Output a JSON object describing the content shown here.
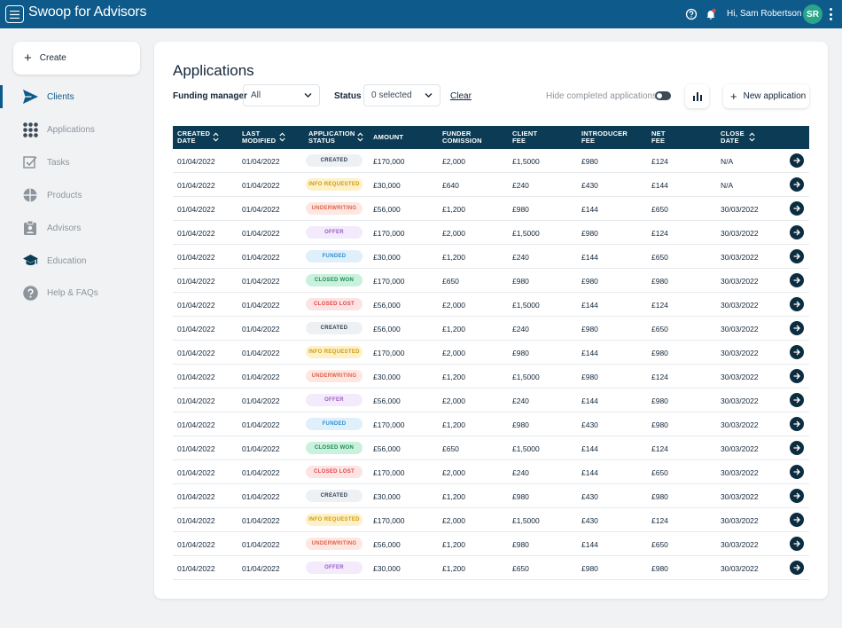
{
  "topbar": {
    "app_title": "Swoop for Advisors",
    "greeting": "Hi, Sam Robertson",
    "avatar_initials": "SR",
    "icons": [
      "menu-icon",
      "help-icon",
      "bell-icon",
      "kebab-icon"
    ],
    "notification_dot_color": "#e5484d"
  },
  "sidebar": {
    "create_label": "Create",
    "items": [
      {
        "label": "Clients",
        "icon": "paper-plane-icon",
        "active": true
      },
      {
        "label": "Applications",
        "icon": "grid-icon",
        "active": false
      },
      {
        "label": "Tasks",
        "icon": "checkbox-icon",
        "active": false
      },
      {
        "label": "Products",
        "icon": "pie-icon",
        "active": false
      },
      {
        "label": "Advisors",
        "icon": "badge-icon",
        "active": false
      },
      {
        "label": "Education",
        "icon": "graduation-cap-icon",
        "active": false
      },
      {
        "label": "Help & FAQs",
        "icon": "question-icon",
        "active": false
      }
    ]
  },
  "main": {
    "title": "Applications",
    "filters": {
      "funding_manager_label": "Funding manager",
      "funding_manager_value": "All",
      "status_label": "Status",
      "status_value": "0 selected",
      "clear_label": "Clear",
      "hide_completed_label": "Hide completed applications",
      "hide_completed_on": false
    },
    "new_application_label": "New application",
    "table": {
      "columns": [
        {
          "line1": "CREATED",
          "line2": "DATE",
          "sortable": true
        },
        {
          "line1": "LAST",
          "line2": "MODIFIED",
          "sortable": true
        },
        {
          "line1": "APPLICATION",
          "line2": "STATUS",
          "sortable": true
        },
        {
          "line1": "AMOUNT",
          "line2": "",
          "sortable": false
        },
        {
          "line1": "FUNDER",
          "line2": "COMISSION",
          "sortable": false
        },
        {
          "line1": "CLIENT",
          "line2": "FEE",
          "sortable": false
        },
        {
          "line1": "INTRODUCER",
          "line2": "FEE",
          "sortable": false
        },
        {
          "line1": "NET",
          "line2": "FEE",
          "sortable": false
        },
        {
          "line1": "CLOSE",
          "line2": "DATE",
          "sortable": true
        }
      ],
      "status_styles": {
        "CREATED": {
          "bg": "#eef1f4",
          "fg": "#2c3e50"
        },
        "INFO REQUESTED": {
          "bg": "#fdf1c9",
          "fg": "#d49a0b"
        },
        "UNDERWRITING": {
          "bg": "#fde7e2",
          "fg": "#e0614a"
        },
        "OFFER": {
          "bg": "#f3eafb",
          "fg": "#9a5bc9"
        },
        "FUNDED": {
          "bg": "#dff0fb",
          "fg": "#2e8fcf"
        },
        "CLOSED WON": {
          "bg": "#c9f1dd",
          "fg": "#1f8a56"
        },
        "CLOSED LOST": {
          "bg": "#fde4e4",
          "fg": "#e0454a"
        }
      },
      "rows": [
        {
          "created": "01/04/2022",
          "modified": "01/04/2022",
          "status": "CREATED",
          "amount": "£170,000",
          "funder": "£2,000",
          "client": "£1,5000",
          "introducer": "£980",
          "net": "£124",
          "close": "N/A"
        },
        {
          "created": "01/04/2022",
          "modified": "01/04/2022",
          "status": "INFO REQUESTED",
          "amount": "£30,000",
          "funder": "£640",
          "client": "£240",
          "introducer": "£430",
          "net": "£144",
          "close": "N/A"
        },
        {
          "created": "01/04/2022",
          "modified": "01/04/2022",
          "status": "UNDERWRITING",
          "amount": "£56,000",
          "funder": "£1,200",
          "client": "£980",
          "introducer": "£144",
          "net": "£650",
          "close": "30/03/2022"
        },
        {
          "created": "01/04/2022",
          "modified": "01/04/2022",
          "status": "OFFER",
          "amount": "£170,000",
          "funder": "£2,000",
          "client": "£1,5000",
          "introducer": "£980",
          "net": "£124",
          "close": "30/03/2022"
        },
        {
          "created": "01/04/2022",
          "modified": "01/04/2022",
          "status": "FUNDED",
          "amount": "£30,000",
          "funder": "£1,200",
          "client": "£240",
          "introducer": "£144",
          "net": "£650",
          "close": "30/03/2022"
        },
        {
          "created": "01/04/2022",
          "modified": "01/04/2022",
          "status": "CLOSED WON",
          "amount": "£170,000",
          "funder": "£650",
          "client": "£980",
          "introducer": "£980",
          "net": "£980",
          "close": "30/03/2022"
        },
        {
          "created": "01/04/2022",
          "modified": "01/04/2022",
          "status": "CLOSED LOST",
          "amount": "£56,000",
          "funder": "£2,000",
          "client": "£1,5000",
          "introducer": "£144",
          "net": "£124",
          "close": "30/03/2022"
        },
        {
          "created": "01/04/2022",
          "modified": "01/04/2022",
          "status": "CREATED",
          "amount": "£56,000",
          "funder": "£1,200",
          "client": "£240",
          "introducer": "£980",
          "net": "£650",
          "close": "30/03/2022"
        },
        {
          "created": "01/04/2022",
          "modified": "01/04/2022",
          "status": "INFO REQUESTED",
          "amount": "£170,000",
          "funder": "£2,000",
          "client": "£980",
          "introducer": "£144",
          "net": "£980",
          "close": "30/03/2022"
        },
        {
          "created": "01/04/2022",
          "modified": "01/04/2022",
          "status": "UNDERWRITING",
          "amount": "£30,000",
          "funder": "£1,200",
          "client": "£1,5000",
          "introducer": "£980",
          "net": "£124",
          "close": "30/03/2022"
        },
        {
          "created": "01/04/2022",
          "modified": "01/04/2022",
          "status": "OFFER",
          "amount": "£56,000",
          "funder": "£2,000",
          "client": "£240",
          "introducer": "£144",
          "net": "£980",
          "close": "30/03/2022"
        },
        {
          "created": "01/04/2022",
          "modified": "01/04/2022",
          "status": "FUNDED",
          "amount": "£170,000",
          "funder": "£1,200",
          "client": "£980",
          "introducer": "£430",
          "net": "£980",
          "close": "30/03/2022"
        },
        {
          "created": "01/04/2022",
          "modified": "01/04/2022",
          "status": "CLOSED WON",
          "amount": "£56,000",
          "funder": "£650",
          "client": "£1,5000",
          "introducer": "£144",
          "net": "£124",
          "close": "30/03/2022"
        },
        {
          "created": "01/04/2022",
          "modified": "01/04/2022",
          "status": "CLOSED LOST",
          "amount": "£170,000",
          "funder": "£2,000",
          "client": "£240",
          "introducer": "£144",
          "net": "£650",
          "close": "30/03/2022"
        },
        {
          "created": "01/04/2022",
          "modified": "01/04/2022",
          "status": "CREATED",
          "amount": "£30,000",
          "funder": "£1,200",
          "client": "£980",
          "introducer": "£430",
          "net": "£980",
          "close": "30/03/2022"
        },
        {
          "created": "01/04/2022",
          "modified": "01/04/2022",
          "status": "INFO REQUESTED",
          "amount": "£170,000",
          "funder": "£2,000",
          "client": "£1,5000",
          "introducer": "£430",
          "net": "£124",
          "close": "30/03/2022"
        },
        {
          "created": "01/04/2022",
          "modified": "01/04/2022",
          "status": "UNDERWRITING",
          "amount": "£56,000",
          "funder": "£1,200",
          "client": "£980",
          "introducer": "£144",
          "net": "£650",
          "close": "30/03/2022"
        },
        {
          "created": "01/04/2022",
          "modified": "01/04/2022",
          "status": "OFFER",
          "amount": "£30,000",
          "funder": "£1,200",
          "client": "£650",
          "introducer": "£980",
          "net": "£980",
          "close": "30/03/2022"
        }
      ]
    }
  }
}
